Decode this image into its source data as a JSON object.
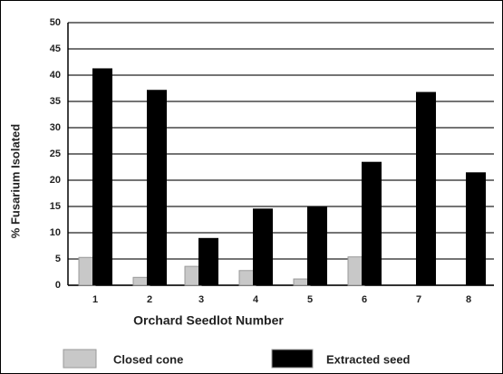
{
  "chart_data": {
    "type": "bar",
    "categories": [
      "1",
      "2",
      "3",
      "4",
      "5",
      "6",
      "7",
      "8"
    ],
    "series": [
      {
        "name": "Closed cone",
        "color": "#c8c8c8",
        "values": [
          5.3,
          1.5,
          3.6,
          2.8,
          1.2,
          5.4,
          0,
          0
        ]
      },
      {
        "name": "Extracted seed",
        "color": "#000000",
        "values": [
          41.3,
          37.2,
          9.0,
          14.6,
          15.0,
          23.5,
          36.8,
          21.5
        ]
      }
    ],
    "xlabel": "Orchard Seedlot Number",
    "ylabel": "% Fusarium Isolated",
    "ylim": [
      0,
      50
    ],
    "yticks": [
      0,
      5,
      10,
      15,
      20,
      25,
      30,
      35,
      40,
      45,
      50
    ],
    "grid": true
  }
}
